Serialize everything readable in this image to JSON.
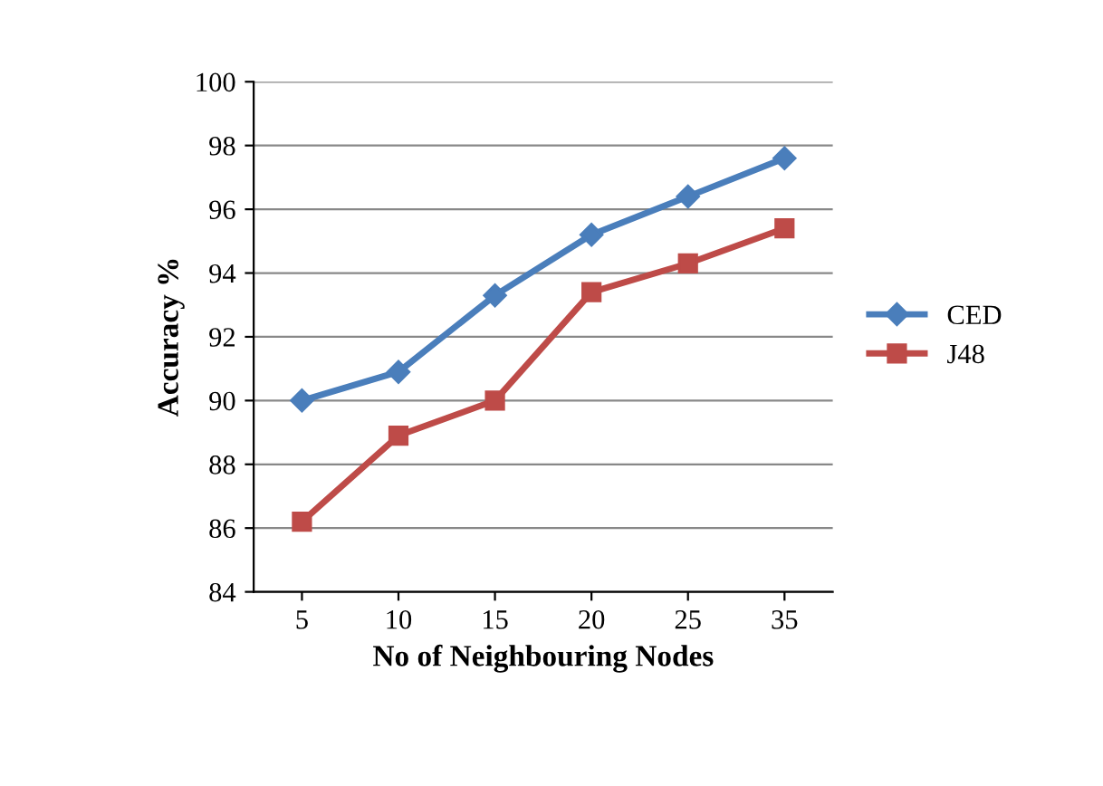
{
  "chart_data": {
    "type": "line",
    "xlabel": "No of Neighbouring Nodes",
    "ylabel": "Accuracy %",
    "categories": [
      "5",
      "10",
      "15",
      "20",
      "25",
      "35"
    ],
    "series": [
      {
        "name": "CED",
        "color": "#4a7ebb",
        "marker": "diamond",
        "values": [
          90.0,
          90.9,
          93.3,
          95.2,
          96.4,
          97.6
        ]
      },
      {
        "name": "J48",
        "color": "#be4b48",
        "marker": "square",
        "values": [
          86.2,
          88.9,
          90.0,
          93.4,
          94.3,
          95.4
        ]
      }
    ],
    "ylim": [
      84,
      100
    ],
    "yticks": [
      84,
      86,
      88,
      90,
      92,
      94,
      96,
      98,
      100
    ],
    "grid": "y",
    "legend": "right",
    "line_style": "solid"
  }
}
